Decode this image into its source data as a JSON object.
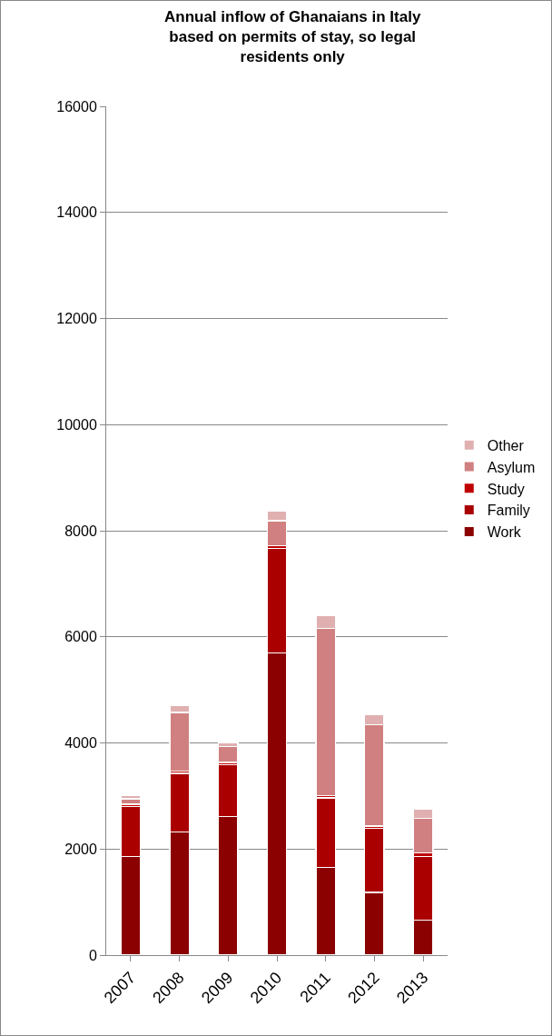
{
  "chart_data": {
    "type": "bar",
    "title": "Annual inflow of Ghanaians in Italy based on permits of stay, so legal residents only",
    "categories": [
      "2007",
      "2008",
      "2009",
      "2010",
      "2011",
      "2012",
      "2013"
    ],
    "stacked": true,
    "series": [
      {
        "name": "Work",
        "color": "#8b0000",
        "values": [
          1860,
          2320,
          2610,
          5700,
          1650,
          1180,
          660
        ]
      },
      {
        "name": "Family",
        "color": "#aa0000",
        "values": [
          940,
          1110,
          980,
          1970,
          1310,
          1210,
          1200
        ]
      },
      {
        "name": "Study",
        "color": "#c00000",
        "values": [
          40,
          40,
          40,
          50,
          50,
          40,
          70
        ]
      },
      {
        "name": "Asylum",
        "color": "#d08080",
        "values": [
          110,
          1100,
          300,
          470,
          3150,
          1910,
          650
        ]
      },
      {
        "name": "Other",
        "color": "#e0b0b0",
        "values": [
          60,
          130,
          70,
          190,
          250,
          200,
          170
        ]
      }
    ],
    "ylim": [
      0,
      16000
    ],
    "yticks": [
      0,
      2000,
      4000,
      6000,
      8000,
      10000,
      12000,
      14000,
      16000
    ],
    "grid": "y",
    "legend": "right"
  }
}
